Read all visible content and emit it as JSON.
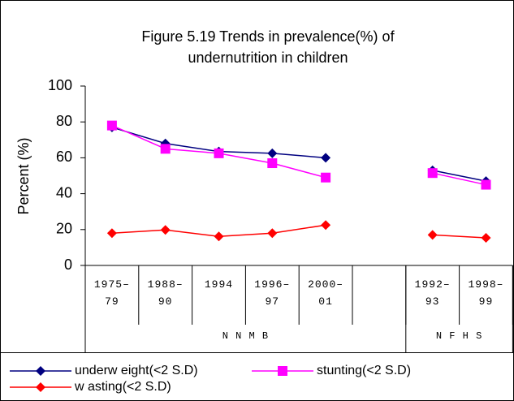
{
  "chart_data": {
    "type": "line",
    "title": [
      "Figure 5.19 Trends in prevalence(%) of",
      "undernutrition  in children"
    ],
    "ylabel": "Percent (%)",
    "categories": [
      "1975–79",
      "1988–90",
      "1994",
      "1996–97",
      "2000–01",
      null,
      "1992–93",
      "1998–99"
    ],
    "groups": [
      {
        "name": "N N M B",
        "count": 6
      },
      {
        "name": "N F H S",
        "count": 2
      }
    ],
    "series": [
      {
        "name": "underw eight(<2 S.D)",
        "color": "#000080",
        "marker": "diamond",
        "values": [
          77,
          68,
          63.5,
          62.5,
          60,
          null,
          53,
          47
        ]
      },
      {
        "name": "stunting(<2 S.D)",
        "color": "#ff00ff",
        "marker": "square",
        "values": [
          78,
          65,
          62.5,
          57,
          49,
          null,
          51.5,
          45
        ]
      },
      {
        "name": "w asting(<2 S.D)",
        "color": "#ff0000",
        "marker": "diamond",
        "values": [
          18,
          19.8,
          16.2,
          18,
          22.5,
          null,
          17,
          15.4
        ]
      }
    ],
    "ylim": [
      0,
      100
    ],
    "yticks": [
      0,
      20,
      40,
      60,
      80,
      100
    ]
  }
}
